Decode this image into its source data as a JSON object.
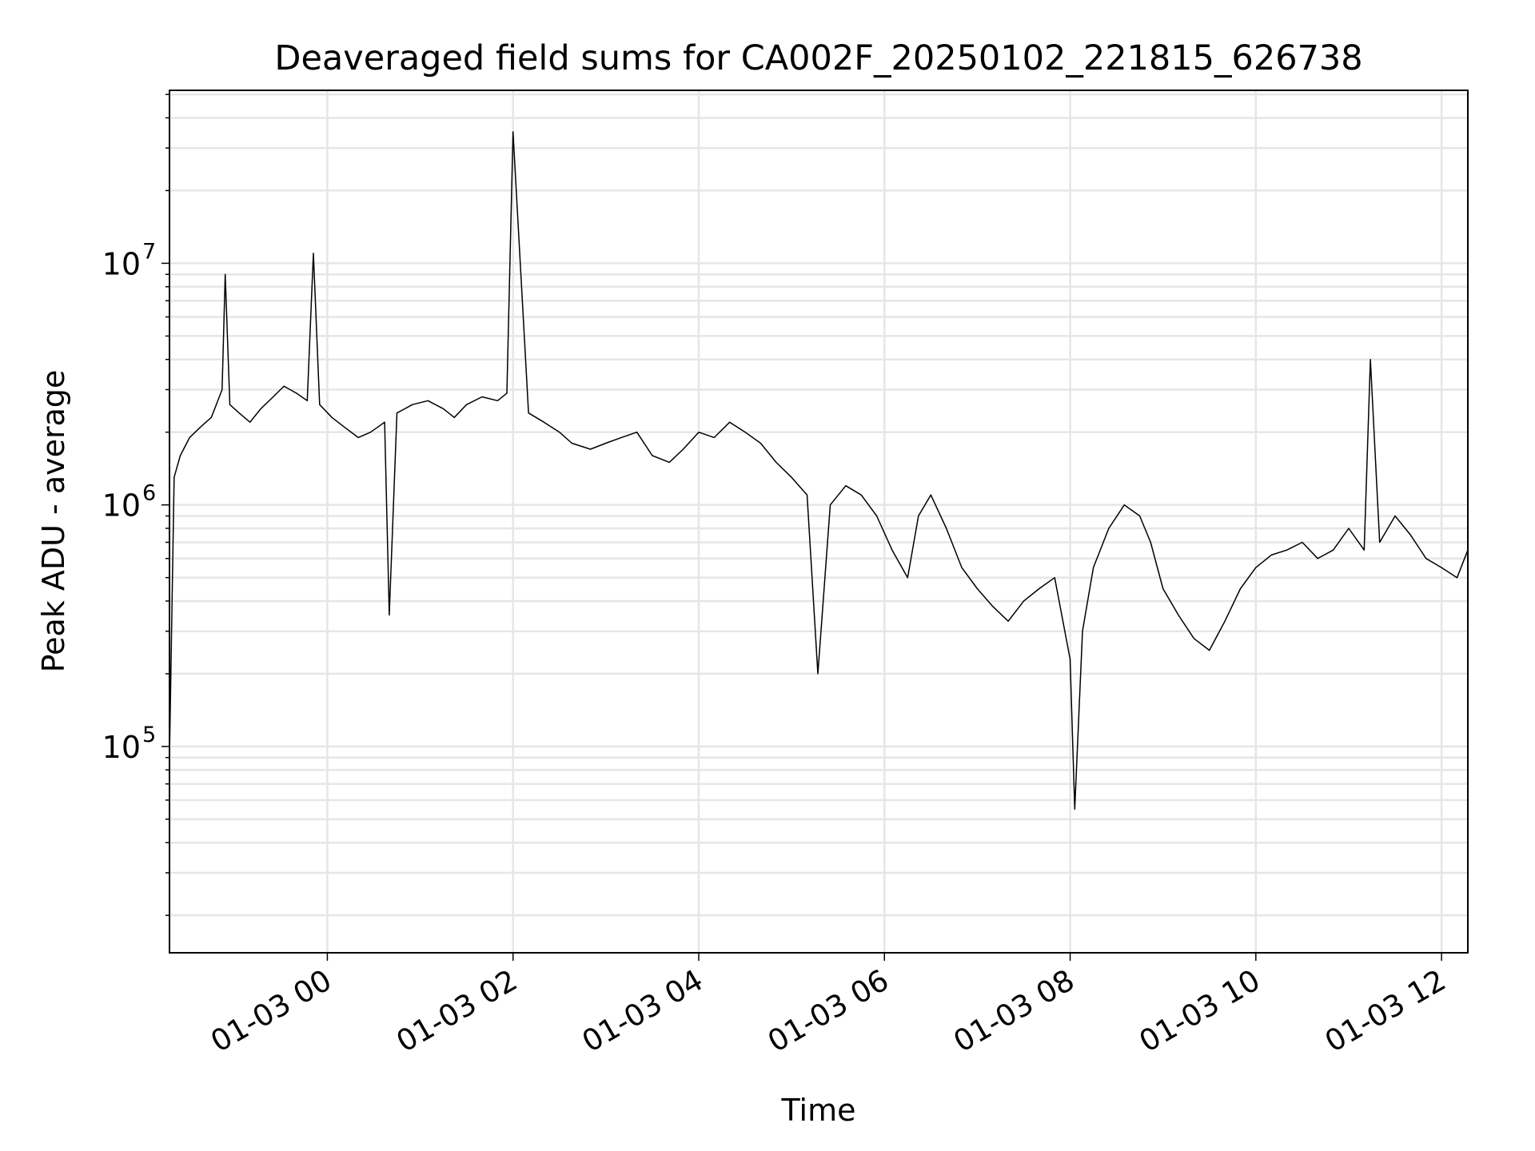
{
  "chart_data": {
    "type": "line",
    "title": "Deaveraged field sums for CA002F_20250102_221815_626738",
    "xlabel": "Time",
    "ylabel": "Peak ADU - average",
    "x_range": [
      "2025-01-02 22:18",
      "2025-01-03 12:17"
    ],
    "x_ticks": [
      "01-03 00",
      "01-03 02",
      "01-03 04",
      "01-03 06",
      "01-03 08",
      "01-03 10",
      "01-03 12"
    ],
    "y_scale": "log",
    "ylim": [
      14000,
      52000000
    ],
    "y_ticks": [
      {
        "value": 100000,
        "base": "10",
        "exp": "5"
      },
      {
        "value": 1000000,
        "base": "10",
        "exp": "6"
      },
      {
        "value": 10000000,
        "base": "10",
        "exp": "7"
      }
    ],
    "grid": "on (major and minor)",
    "line_color": "#000000",
    "grid_color": "#e6e6e6",
    "series": [
      {
        "x": [
          "2025-01-02 22:18",
          "2025-01-02 22:21",
          "2025-01-02 22:25",
          "2025-01-02 22:31",
          "2025-01-02 22:38",
          "2025-01-02 22:45",
          "2025-01-02 22:52",
          "2025-01-02 22:54",
          "2025-01-02 22:57",
          "2025-01-02 23:03",
          "2025-01-02 23:10",
          "2025-01-02 23:17",
          "2025-01-02 23:25",
          "2025-01-02 23:32",
          "2025-01-02 23:40",
          "2025-01-02 23:47",
          "2025-01-02 23:51",
          "2025-01-02 23:55",
          "2025-01-03 00:03",
          "2025-01-03 00:11",
          "2025-01-03 00:20",
          "2025-01-03 00:28",
          "2025-01-03 00:37",
          "2025-01-03 00:40",
          "2025-01-03 00:45",
          "2025-01-03 00:55",
          "2025-01-03 01:05",
          "2025-01-03 01:15",
          "2025-01-03 01:22",
          "2025-01-03 01:30",
          "2025-01-03 01:40",
          "2025-01-03 01:50",
          "2025-01-03 01:56",
          "2025-01-03 02:00",
          "2025-01-03 02:10",
          "2025-01-03 02:20",
          "2025-01-03 02:30",
          "2025-01-03 02:38",
          "2025-01-03 02:50",
          "2025-01-03 03:00",
          "2025-01-03 03:10",
          "2025-01-03 03:20",
          "2025-01-03 03:30",
          "2025-01-03 03:41",
          "2025-01-03 03:50",
          "2025-01-03 04:00",
          "2025-01-03 04:10",
          "2025-01-03 04:20",
          "2025-01-03 04:30",
          "2025-01-03 04:40",
          "2025-01-03 04:50",
          "2025-01-03 05:00",
          "2025-01-03 05:10",
          "2025-01-03 05:17",
          "2025-01-03 05:25",
          "2025-01-03 05:35",
          "2025-01-03 05:45",
          "2025-01-03 05:55",
          "2025-01-03 06:05",
          "2025-01-03 06:15",
          "2025-01-03 06:22",
          "2025-01-03 06:30",
          "2025-01-03 06:40",
          "2025-01-03 06:50",
          "2025-01-03 07:00",
          "2025-01-03 07:10",
          "2025-01-03 07:20",
          "2025-01-03 07:30",
          "2025-01-03 07:40",
          "2025-01-03 07:50",
          "2025-01-03 08:00",
          "2025-01-03 08:03",
          "2025-01-03 08:08",
          "2025-01-03 08:15",
          "2025-01-03 08:25",
          "2025-01-03 08:35",
          "2025-01-03 08:45",
          "2025-01-03 08:52",
          "2025-01-03 09:00",
          "2025-01-03 09:10",
          "2025-01-03 09:20",
          "2025-01-03 09:30",
          "2025-01-03 09:40",
          "2025-01-03 09:50",
          "2025-01-03 10:00",
          "2025-01-03 10:10",
          "2025-01-03 10:20",
          "2025-01-03 10:30",
          "2025-01-03 10:40",
          "2025-01-03 10:50",
          "2025-01-03 11:00",
          "2025-01-03 11:10",
          "2025-01-03 11:14",
          "2025-01-03 11:20",
          "2025-01-03 11:30",
          "2025-01-03 11:40",
          "2025-01-03 11:50",
          "2025-01-03 12:00",
          "2025-01-03 12:10",
          "2025-01-03 12:17"
        ],
        "y": [
          90000,
          1300000,
          1600000,
          1900000,
          2100000,
          2300000,
          3000000,
          9000000,
          2600000,
          2400000,
          2200000,
          2500000,
          2800000,
          3100000,
          2900000,
          2700000,
          11000000,
          2600000,
          2300000,
          2100000,
          1900000,
          2000000,
          2200000,
          350000,
          2400000,
          2600000,
          2700000,
          2500000,
          2300000,
          2600000,
          2800000,
          2700000,
          2900000,
          35000000,
          2400000,
          2200000,
          2000000,
          1800000,
          1700000,
          1800000,
          1900000,
          2000000,
          1600000,
          1500000,
          1700000,
          2000000,
          1900000,
          2200000,
          2000000,
          1800000,
          1500000,
          1300000,
          1100000,
          200000,
          1000000,
          1200000,
          1100000,
          900000,
          650000,
          500000,
          900000,
          1100000,
          800000,
          550000,
          450000,
          380000,
          330000,
          400000,
          450000,
          500000,
          230000,
          55000,
          300000,
          550000,
          800000,
          1000000,
          900000,
          700000,
          450000,
          350000,
          280000,
          250000,
          330000,
          450000,
          550000,
          620000,
          650000,
          700000,
          600000,
          650000,
          800000,
          650000,
          4000000,
          700000,
          900000,
          750000,
          600000,
          550000,
          500000,
          650000
        ]
      }
    ]
  }
}
